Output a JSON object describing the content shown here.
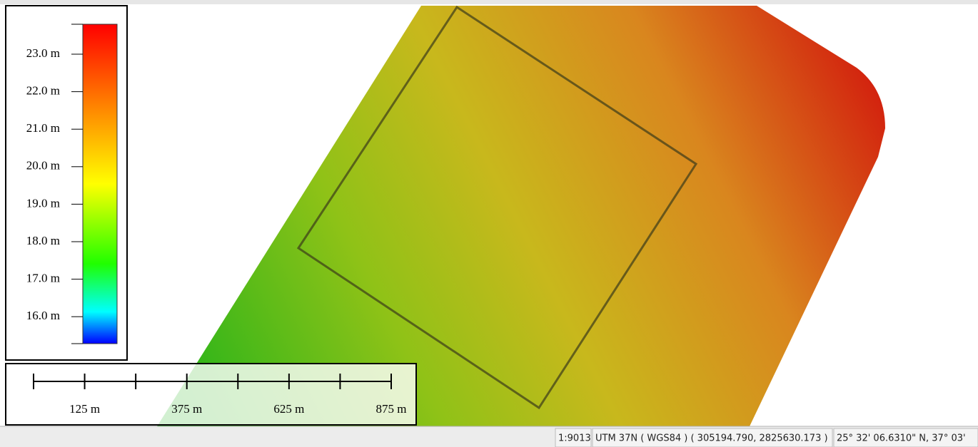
{
  "legend": {
    "labels": [
      "23.0 m",
      "22.0 m",
      "21.0 m",
      "20.0 m",
      "19.0 m",
      "18.0 m",
      "17.0 m",
      "16.0 m"
    ]
  },
  "scale_bar": {
    "labels": [
      "125 m",
      "375 m",
      "625 m",
      "875 m"
    ]
  },
  "status_bar": {
    "scale": "1:9013",
    "projection": "UTM 37N ( WGS84 ) ( 305194.790, 2825630.173 )",
    "coordinates": "25° 32' 06.6310\" N, 37° 03' "
  }
}
